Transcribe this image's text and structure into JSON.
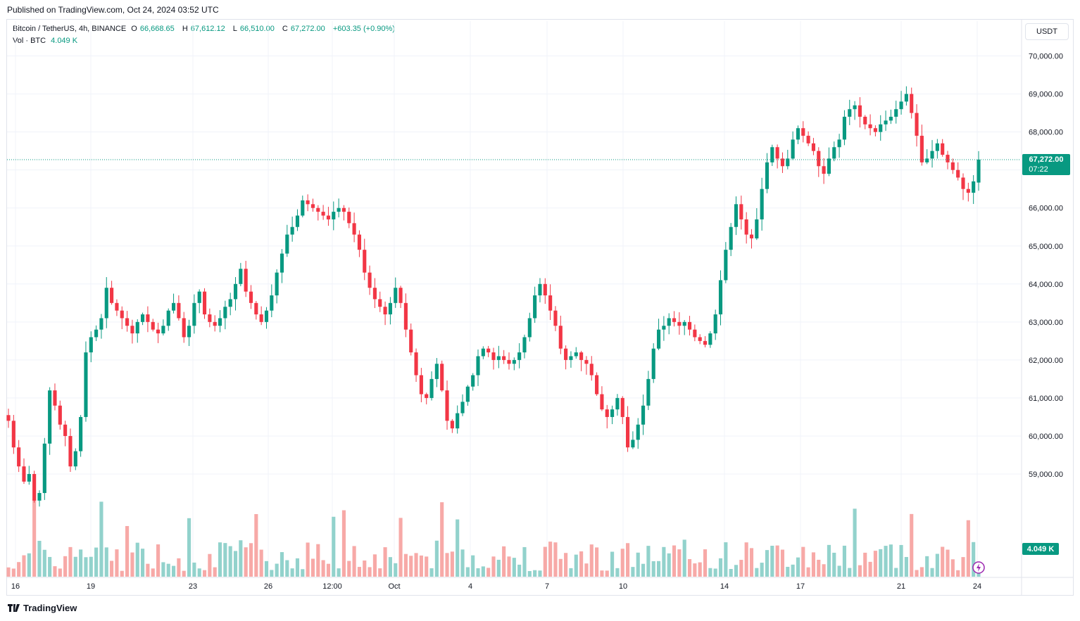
{
  "published": "Published on TradingView.com, Oct 24, 2024 03:52 UTC",
  "legend": {
    "symbol": "Bitcoin / TetherUS, 4h, BINANCE",
    "o_label": "O",
    "o": "66,668.65",
    "h_label": "H",
    "h": "67,612.12",
    "l_label": "L",
    "l": "66,510.00",
    "c_label": "C",
    "c": "67,272.00",
    "change": "+603.35 (+0.90%)",
    "vol_label": "Vol · BTC",
    "vol_value": "4.049 K"
  },
  "currency_button": "USDT",
  "price_tag": {
    "price": "67,272.00",
    "countdown": "07:22"
  },
  "volume_tag": "4.049 K",
  "footer_brand": "TradingView",
  "colors": {
    "up": "#089981",
    "down": "#f23645",
    "up_vol": "#92d2cc",
    "down_vol": "#f7a9a7",
    "grid": "#f0f3fa"
  },
  "chart_data": {
    "type": "candlestick",
    "title": "Bitcoin / TetherUS, 4h, BINANCE",
    "y_ticks": [
      "59,000.00",
      "60,000.00",
      "61,000.00",
      "62,000.00",
      "63,000.00",
      "64,000.00",
      "65,000.00",
      "66,000.00",
      "67,000.00",
      "68,000.00",
      "69,000.00",
      "70,000.00"
    ],
    "x_ticks": [
      "16",
      "19",
      "23",
      "26",
      "12:00",
      "Oct",
      "4",
      "7",
      "10",
      "14",
      "17",
      "21",
      "24"
    ],
    "ylim": [
      58700,
      70400
    ],
    "current_price": 67272,
    "grid": true,
    "candles_close": [
      60400,
      59700,
      59200,
      58800,
      59000,
      58300,
      58500,
      59800,
      61200,
      60800,
      60300,
      60000,
      59200,
      59600,
      60500,
      62200,
      62600,
      62800,
      63100,
      63900,
      63500,
      63300,
      63100,
      62900,
      62700,
      63000,
      63200,
      63000,
      62800,
      62700,
      62900,
      63300,
      63500,
      63100,
      62600,
      62900,
      63500,
      63800,
      63200,
      63000,
      62900,
      63100,
      63400,
      63600,
      64000,
      64400,
      63800,
      63500,
      63200,
      63000,
      63300,
      63700,
      64300,
      64800,
      65300,
      65500,
      65800,
      66200,
      66100,
      66000,
      65900,
      65800,
      65700,
      65900,
      66000,
      65900,
      65600,
      65300,
      64900,
      64300,
      63900,
      63600,
      63400,
      63200,
      63500,
      63900,
      63500,
      62800,
      62200,
      61600,
      61100,
      61000,
      61500,
      61900,
      61200,
      60400,
      60200,
      60600,
      60900,
      61300,
      61600,
      62100,
      62300,
      62200,
      62000,
      62100,
      62000,
      61900,
      62000,
      62200,
      62600,
      63100,
      63700,
      64000,
      63700,
      63300,
      62900,
      62300,
      62000,
      62100,
      62200,
      62000,
      61900,
      61600,
      61100,
      60700,
      60500,
      60700,
      61000,
      60500,
      59700,
      59900,
      60300,
      60800,
      61500,
      62300,
      62800,
      62900,
      63100,
      63000,
      62900,
      63000,
      62800,
      62600,
      62500,
      62400,
      62700,
      63200,
      64100,
      64900,
      65500,
      66100,
      65700,
      65300,
      65200,
      65700,
      66500,
      67200,
      67600,
      67300,
      67100,
      67300,
      67800,
      68100,
      67900,
      67700,
      67500,
      67100,
      66900,
      67300,
      67600,
      67800,
      68400,
      68600,
      68700,
      68400,
      68200,
      68100,
      68000,
      68200,
      68300,
      68400,
      68600,
      68800,
      69000,
      68500,
      67900,
      67200,
      67300,
      67500,
      67700,
      67400,
      67200,
      67000,
      66800,
      66500,
      66400,
      66700,
      67272
    ]
  }
}
